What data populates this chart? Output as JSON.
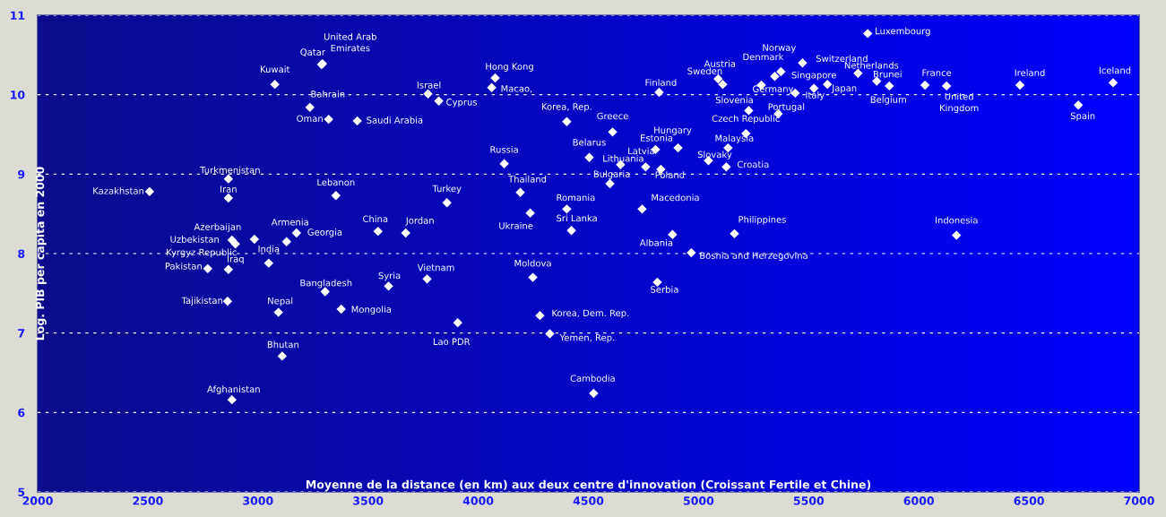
{
  "chart_data": {
    "type": "scatter",
    "xlabel": "Moyenne de la distance (en km) aux deux centre d'innovation (Croissant Fertile et Chine)",
    "ylabel": "Log. PIB per capita en 2000",
    "xlim": [
      2000,
      7000
    ],
    "ylim": [
      5,
      11
    ],
    "xticks": [
      2000,
      2500,
      3000,
      3500,
      4000,
      4500,
      5000,
      5500,
      6000,
      6500,
      7000
    ],
    "yticks": [
      5,
      6,
      7,
      8,
      9,
      10,
      11
    ],
    "grid": "y",
    "legend": false,
    "marker": "diamond",
    "series": [
      {
        "color": "#ffffff",
        "x": [
          2508,
          2866,
          2866,
          3077,
          3289,
          3293,
          3236,
          3321,
          3451,
          3354,
          2984,
          2882,
          2898,
          3130,
          3175,
          3049,
          2866,
          2772,
          2862,
          3093,
          3305,
          3378,
          3593,
          3768,
          3907,
          3110,
          2882,
          3545,
          3671,
          3858,
          3772,
          3821,
          4077,
          4061,
          4118,
          4191,
          4236,
          4402,
          4423,
          4248,
          4402,
          4610,
          4504,
          4646,
          4760,
          4805,
          4907,
          4829,
          4598,
          4744,
          4882,
          4967,
          4813,
          5163,
          4280,
          4325,
          4524,
          4821,
          5089,
          5110,
          5228,
          5215,
          5134,
          5045,
          5126,
          5362,
          5285,
          5346,
          5374,
          5472,
          5439,
          5524,
          5585,
          5724,
          5809,
          5866,
          5768,
          6028,
          6126,
          6459,
          6724,
          6171,
          6882
        ],
        "values": [
          8.78,
          8.94,
          8.7,
          10.13,
          10.38,
          10.39,
          9.84,
          9.69,
          9.67,
          8.73,
          8.18,
          8.17,
          8.12,
          8.15,
          8.26,
          7.88,
          7.8,
          7.81,
          7.4,
          7.26,
          7.52,
          7.3,
          7.59,
          7.68,
          7.13,
          6.71,
          6.16,
          8.28,
          8.26,
          8.64,
          10.01,
          9.92,
          10.21,
          10.09,
          9.13,
          8.77,
          8.51,
          8.56,
          8.29,
          7.7,
          9.66,
          9.53,
          9.21,
          9.12,
          9.09,
          9.31,
          9.33,
          9.06,
          8.88,
          8.56,
          8.24,
          8.01,
          7.64,
          8.25,
          7.22,
          6.99,
          6.24,
          10.03,
          10.2,
          10.13,
          9.8,
          9.51,
          9.33,
          9.17,
          9.09,
          9.76,
          10.12,
          10.23,
          10.29,
          10.4,
          10.02,
          10.08,
          10.13,
          10.27,
          10.17,
          10.11,
          10.77,
          10.12,
          10.11,
          10.12,
          9.87,
          8.23,
          10.15
        ]
      }
    ],
    "annotations": [
      {
        "text": "Kazakhstan",
        "x": 2508,
        "y": 8.78
      },
      {
        "text": "Turkmenistan",
        "x": 2866,
        "y": 8.94
      },
      {
        "text": "Iran",
        "x": 2866,
        "y": 8.7
      },
      {
        "text": "Kuwait",
        "x": 3077,
        "y": 10.13
      },
      {
        "text": "Qatar",
        "x": 3289,
        "y": 10.38
      },
      {
        "text": "United Arab\nEmirates",
        "x": 3293,
        "y": 10.39
      },
      {
        "text": "Bahrain",
        "x": 3236,
        "y": 9.84
      },
      {
        "text": "Oman",
        "x": 3321,
        "y": 9.69
      },
      {
        "text": "Saudi Arabia",
        "x": 3451,
        "y": 9.67
      },
      {
        "text": "Lebanon",
        "x": 3354,
        "y": 8.73
      },
      {
        "text": "Azerbaijan",
        "x": 2984,
        "y": 8.18
      },
      {
        "text": "Uzbekistan",
        "x": 2882,
        "y": 8.17
      },
      {
        "text": "Kyrgyz Republic",
        "x": 2898,
        "y": 8.12
      },
      {
        "text": "Armenia",
        "x": 3130,
        "y": 8.15
      },
      {
        "text": "Georgia",
        "x": 3175,
        "y": 8.26
      },
      {
        "text": "India",
        "x": 3049,
        "y": 7.88
      },
      {
        "text": "Iraq",
        "x": 2866,
        "y": 7.8
      },
      {
        "text": "Pakistan",
        "x": 2772,
        "y": 7.81
      },
      {
        "text": "Tajikistan",
        "x": 2862,
        "y": 7.4
      },
      {
        "text": "Nepal",
        "x": 3093,
        "y": 7.26
      },
      {
        "text": "Bangladesh",
        "x": 3305,
        "y": 7.52
      },
      {
        "text": "Mongolia",
        "x": 3378,
        "y": 7.3
      },
      {
        "text": "Syria",
        "x": 3593,
        "y": 7.59
      },
      {
        "text": "Vietnam",
        "x": 3768,
        "y": 7.68
      },
      {
        "text": "Lao PDR",
        "x": 3907,
        "y": 7.13
      },
      {
        "text": "Bhutan",
        "x": 3110,
        "y": 6.71
      },
      {
        "text": "Afghanistan",
        "x": 2882,
        "y": 6.16
      },
      {
        "text": "China",
        "x": 3545,
        "y": 8.28
      },
      {
        "text": "Jordan",
        "x": 3671,
        "y": 8.26
      },
      {
        "text": "Turkey",
        "x": 3858,
        "y": 8.64
      },
      {
        "text": "Israel",
        "x": 3772,
        "y": 10.01
      },
      {
        "text": "Cyprus",
        "x": 3821,
        "y": 9.92
      },
      {
        "text": "Hong Kong",
        "x": 4077,
        "y": 10.21
      },
      {
        "text": "Macao,",
        "x": 4061,
        "y": 10.09
      },
      {
        "text": "Russia",
        "x": 4118,
        "y": 9.13
      },
      {
        "text": "Thailand",
        "x": 4191,
        "y": 8.77
      },
      {
        "text": "Ukraine",
        "x": 4236,
        "y": 8.51
      },
      {
        "text": "Romania",
        "x": 4402,
        "y": 8.56
      },
      {
        "text": "Sri Lanka",
        "x": 4423,
        "y": 8.29
      },
      {
        "text": "Moldova",
        "x": 4248,
        "y": 7.7
      },
      {
        "text": "Korea, Rep.",
        "x": 4402,
        "y": 9.66
      },
      {
        "text": "Greece",
        "x": 4610,
        "y": 9.53
      },
      {
        "text": "Belarus",
        "x": 4504,
        "y": 9.21
      },
      {
        "text": "Lithuania",
        "x": 4646,
        "y": 9.12
      },
      {
        "text": "Latvia",
        "x": 4760,
        "y": 9.09
      },
      {
        "text": "Estonia",
        "x": 4805,
        "y": 9.31
      },
      {
        "text": "Hungary",
        "x": 4907,
        "y": 9.33
      },
      {
        "text": "Poland",
        "x": 4829,
        "y": 9.06
      },
      {
        "text": "Bulgaria",
        "x": 4598,
        "y": 8.88
      },
      {
        "text": "Macedonia",
        "x": 4744,
        "y": 8.56
      },
      {
        "text": "Albania",
        "x": 4882,
        "y": 8.24
      },
      {
        "text": "Bosnia and Herzegovina",
        "x": 4967,
        "y": 8.01
      },
      {
        "text": "Serbia",
        "x": 4813,
        "y": 7.64
      },
      {
        "text": "Philippines",
        "x": 5163,
        "y": 8.25
      },
      {
        "text": "Korea, Dem. Rep.",
        "x": 4280,
        "y": 7.22
      },
      {
        "text": "Yemen, Rep.",
        "x": 4325,
        "y": 6.99
      },
      {
        "text": "Cambodia",
        "x": 4524,
        "y": 6.24
      },
      {
        "text": "Finland",
        "x": 4821,
        "y": 10.03
      },
      {
        "text": "Austria",
        "x": 5089,
        "y": 10.2
      },
      {
        "text": "Sweden",
        "x": 5110,
        "y": 10.13
      },
      {
        "text": "Slovenia",
        "x": 5228,
        "y": 9.8
      },
      {
        "text": "Czech Republic",
        "x": 5215,
        "y": 9.51
      },
      {
        "text": "Malaysia",
        "x": 5134,
        "y": 9.33
      },
      {
        "text": "Slovaky",
        "x": 5045,
        "y": 9.17
      },
      {
        "text": "Croatia",
        "x": 5126,
        "y": 9.09
      },
      {
        "text": "Portugal",
        "x": 5362,
        "y": 9.76
      },
      {
        "text": "Germany",
        "x": 5285,
        "y": 10.12
      },
      {
        "text": "Denmark",
        "x": 5346,
        "y": 10.23
      },
      {
        "text": "Norway",
        "x": 5374,
        "y": 10.29
      },
      {
        "text": "Switzerland",
        "x": 5472,
        "y": 10.4
      },
      {
        "text": "Italy",
        "x": 5439,
        "y": 10.02
      },
      {
        "text": "Singapore",
        "x": 5524,
        "y": 10.08
      },
      {
        "text": "Japan",
        "x": 5585,
        "y": 10.13
      },
      {
        "text": "Netherlands",
        "x": 5724,
        "y": 10.27
      },
      {
        "text": "Brunei",
        "x": 5809,
        "y": 10.17
      },
      {
        "text": "Belgium",
        "x": 5866,
        "y": 10.11
      },
      {
        "text": "Luxembourg",
        "x": 5768,
        "y": 10.77
      },
      {
        "text": "France",
        "x": 6028,
        "y": 10.12
      },
      {
        "text": "United\nKingdom",
        "x": 6126,
        "y": 10.11
      },
      {
        "text": "Ireland",
        "x": 6459,
        "y": 10.12
      },
      {
        "text": "Spain",
        "x": 6724,
        "y": 9.87
      },
      {
        "text": "Indonesia",
        "x": 6171,
        "y": 8.23
      },
      {
        "text": "Iceland",
        "x": 6882,
        "y": 10.15
      }
    ]
  }
}
